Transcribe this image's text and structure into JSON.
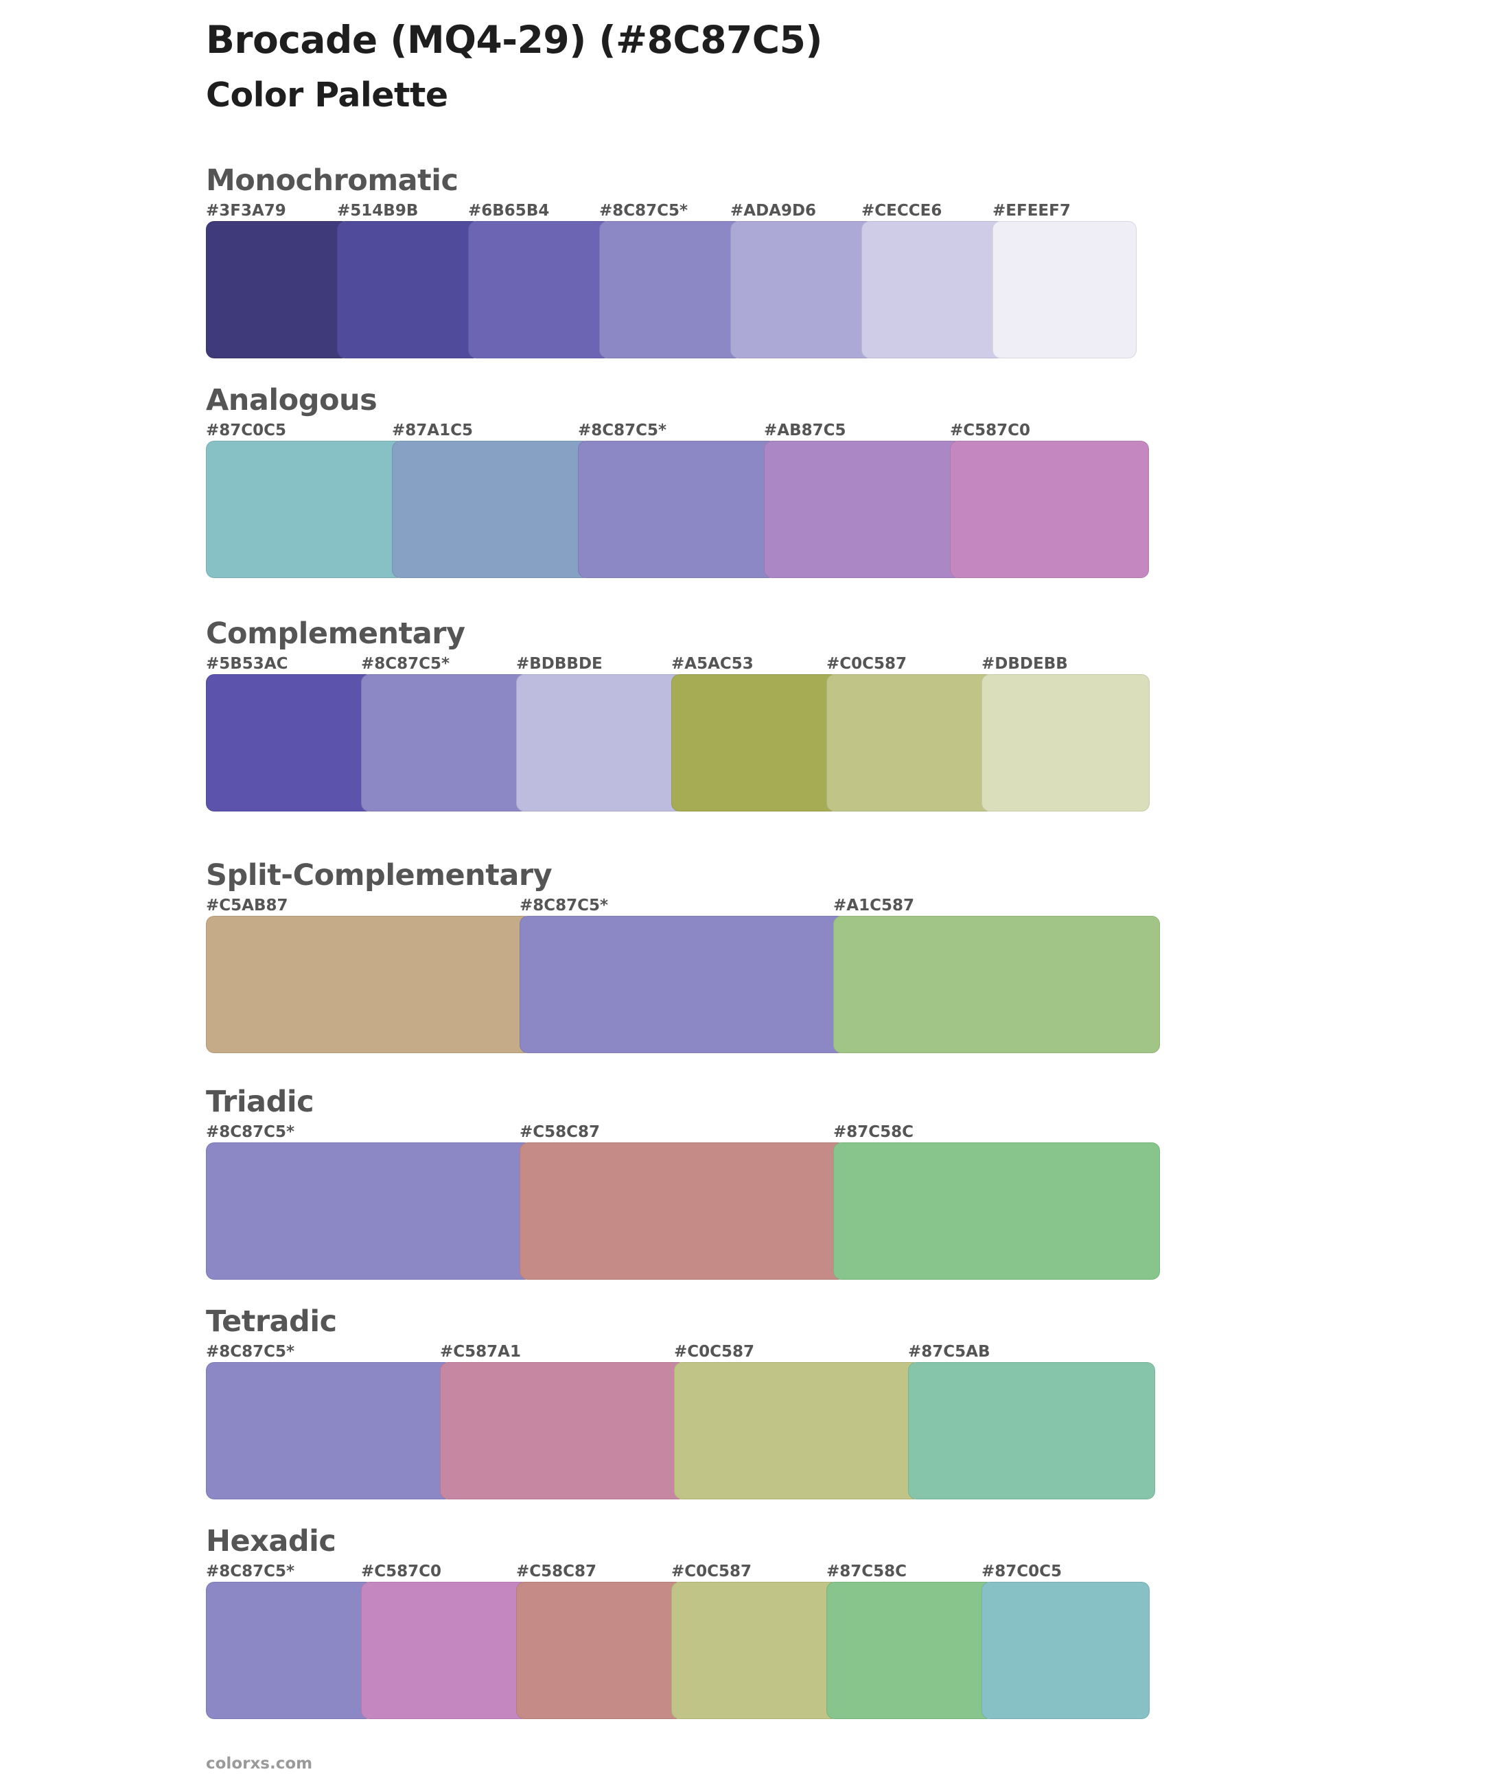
{
  "title": "Brocade (MQ4-29) (#8C87C5)",
  "subtitle": "Color Palette",
  "sections": [
    {
      "name": "Monochromatic",
      "swatches": [
        {
          "label": "#3F3A79",
          "color": "#3F3A79"
        },
        {
          "label": "#514B9B",
          "color": "#514B9B"
        },
        {
          "label": "#6B65B4",
          "color": "#6B65B4"
        },
        {
          "label": "#8C87C5*",
          "color": "#8C87C5"
        },
        {
          "label": "#ADA9D6",
          "color": "#ADA9D6"
        },
        {
          "label": "#CECCE6",
          "color": "#CECCE6"
        },
        {
          "label": "#EFEEF7",
          "color": "#EFEEF7"
        }
      ]
    },
    {
      "name": "Analogous",
      "swatches": [
        {
          "label": "#87C0C5",
          "color": "#87C0C5"
        },
        {
          "label": "#87A1C5",
          "color": "#87A1C5"
        },
        {
          "label": "#8C87C5*",
          "color": "#8C87C5"
        },
        {
          "label": "#AB87C5",
          "color": "#AB87C5"
        },
        {
          "label": "#C587C0",
          "color": "#C587C0"
        }
      ]
    },
    {
      "name": "Complementary",
      "swatches": [
        {
          "label": "#5B53AC",
          "color": "#5B53AC"
        },
        {
          "label": "#8C87C5*",
          "color": "#8C87C5"
        },
        {
          "label": "#BDBBDE",
          "color": "#BDBBDE"
        },
        {
          "label": "#A5AC53",
          "color": "#A5AC53"
        },
        {
          "label": "#C0C587",
          "color": "#C0C587"
        },
        {
          "label": "#DBDEBB",
          "color": "#DBDEBB"
        }
      ]
    },
    {
      "name": "Split-Complementary",
      "swatches": [
        {
          "label": "#C5AB87",
          "color": "#C5AB87"
        },
        {
          "label": "#8C87C5*",
          "color": "#8C87C5"
        },
        {
          "label": "#A1C587",
          "color": "#A1C587"
        }
      ]
    },
    {
      "name": "Triadic",
      "swatches": [
        {
          "label": "#8C87C5*",
          "color": "#8C87C5"
        },
        {
          "label": "#C58C87",
          "color": "#C58C87"
        },
        {
          "label": "#87C58C",
          "color": "#87C58C"
        }
      ]
    },
    {
      "name": "Tetradic",
      "swatches": [
        {
          "label": "#8C87C5*",
          "color": "#8C87C5"
        },
        {
          "label": "#C587A1",
          "color": "#C587A1"
        },
        {
          "label": "#C0C587",
          "color": "#C0C587"
        },
        {
          "label": "#87C5AB",
          "color": "#87C5AB"
        }
      ]
    },
    {
      "name": "Hexadic",
      "swatches": [
        {
          "label": "#8C87C5*",
          "color": "#8C87C5"
        },
        {
          "label": "#C587C0",
          "color": "#C587C0"
        },
        {
          "label": "#C58C87",
          "color": "#C58C87"
        },
        {
          "label": "#C0C587",
          "color": "#C0C587"
        },
        {
          "label": "#87C58C",
          "color": "#87C58C"
        },
        {
          "label": "#87C0C5",
          "color": "#87C0C5"
        }
      ]
    }
  ],
  "footer": "colorxs.com"
}
